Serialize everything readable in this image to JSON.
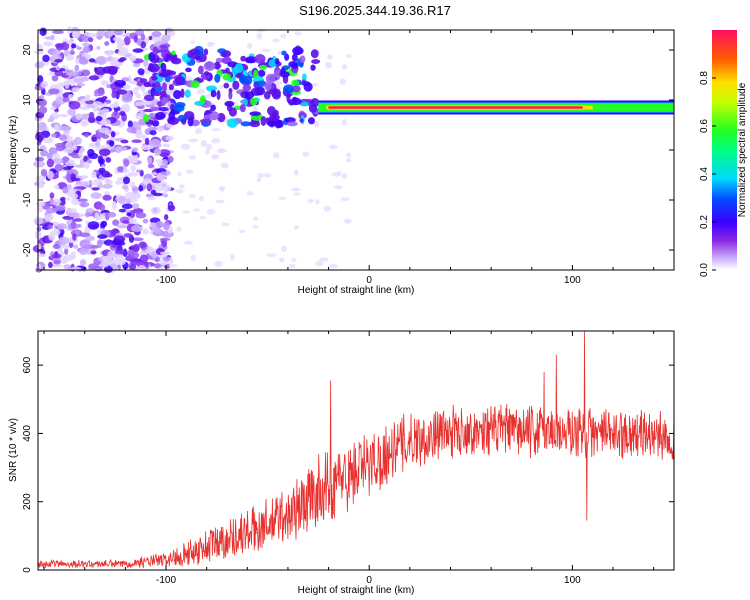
{
  "title": "S196.2025.344.19.36.R17",
  "chart_data": [
    {
      "type": "heatmap",
      "name": "spectrogram",
      "xlabel": "Height of straight line (km)",
      "ylabel": "Frequency (Hz)",
      "xlim": [
        -163,
        150
      ],
      "ylim": [
        -24,
        24
      ],
      "xticks": [
        -100,
        0,
        100
      ],
      "xtick_labels": [
        "-100",
        "0",
        "100"
      ],
      "yticks": [
        -20,
        -10,
        0,
        10,
        20
      ],
      "ytick_labels": [
        "-20",
        "-10",
        "0",
        "10",
        "20"
      ],
      "colorbar": {
        "label": "Normalized spectral amplitude",
        "range": [
          0.0,
          1.0
        ],
        "ticks": [
          0.0,
          0.2,
          0.4,
          0.6,
          0.8
        ],
        "tick_labels": [
          "0.0",
          "0.2",
          "0.4",
          "0.6",
          "0.8"
        ]
      },
      "features": {
        "carrier_frequency_hz": 8.5,
        "carrier_start_km": -25,
        "noise_region_end_km": -97
      }
    },
    {
      "type": "line",
      "name": "snr",
      "xlabel": "Height of straight line (km)",
      "ylabel": "SNR (10 * v/v)",
      "xlim": [
        -163,
        150
      ],
      "ylim": [
        0,
        700
      ],
      "xticks": [
        -100,
        0,
        100
      ],
      "xtick_labels": [
        "-100",
        "0",
        "100"
      ],
      "yticks": [
        0,
        200,
        400,
        600
      ],
      "ytick_labels": [
        "0",
        "200",
        "400",
        "600"
      ],
      "color": "#e8312e",
      "envelope_x": [
        -163,
        -120,
        -100,
        -80,
        -60,
        -40,
        -25,
        -15,
        0,
        20,
        40,
        60,
        80,
        100,
        120,
        150
      ],
      "envelope_mean": [
        18,
        18,
        30,
        70,
        110,
        160,
        230,
        260,
        310,
        380,
        405,
        410,
        405,
        400,
        400,
        395
      ],
      "envelope_amp": [
        12,
        12,
        25,
        55,
        70,
        90,
        110,
        110,
        100,
        90,
        80,
        80,
        80,
        80,
        75,
        75
      ],
      "spikes": [
        {
          "x": -19,
          "y": 555
        },
        {
          "x": 86,
          "y": 580
        },
        {
          "x": 92,
          "y": 630
        },
        {
          "x": 106,
          "y": 700
        },
        {
          "x": 107,
          "y": 145
        }
      ]
    }
  ]
}
